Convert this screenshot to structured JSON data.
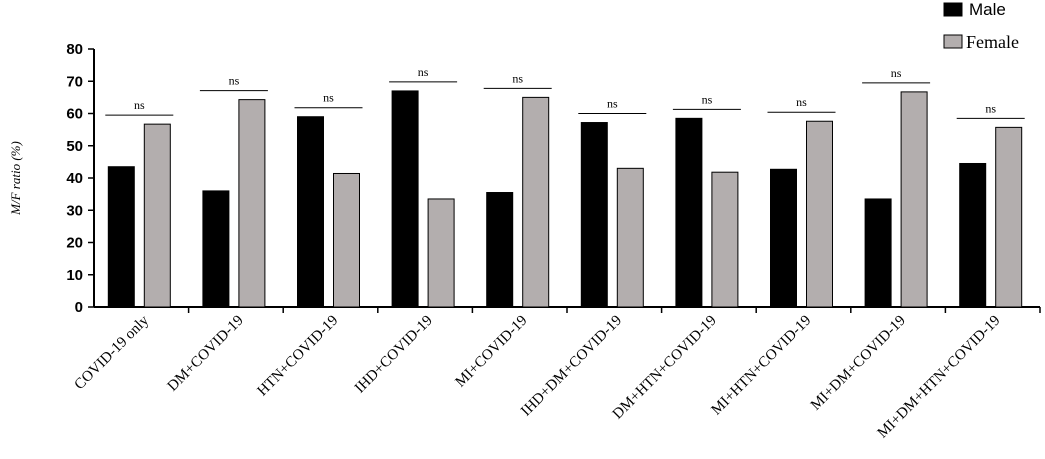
{
  "chart_data": {
    "type": "bar",
    "title": "",
    "xlabel": "",
    "ylabel": "M/F ratio (%)",
    "ylim": [
      0,
      80
    ],
    "yticks": [
      0,
      10,
      20,
      30,
      40,
      50,
      60,
      70,
      80
    ],
    "grid": false,
    "legend_position": "top-right",
    "categories": [
      "COVID-19 only",
      "DM+COVID-19",
      "HTN+COVID-19",
      "IHD+COVID-19",
      "MI+COVID-19",
      "IHD+DM+COVID-19",
      "DM+HTN+COVID-19",
      "MI+HTN+COVID-19",
      "MI+DM+COVID-19",
      "MI+DM+HTN+COVID-19"
    ],
    "series": [
      {
        "name": "Male",
        "color": "#000000",
        "values": [
          43.5,
          36,
          59,
          67,
          35.5,
          57.2,
          58.5,
          42.7,
          33.5,
          44.5
        ]
      },
      {
        "name": "Female",
        "color": "#b3aeae",
        "values": [
          56.7,
          64.3,
          41.4,
          33.5,
          65,
          43,
          41.8,
          57.6,
          66.7,
          55.7
        ]
      }
    ],
    "annotations": [
      "ns",
      "ns",
      "ns",
      "ns",
      "ns",
      "ns",
      "ns",
      "ns",
      "ns",
      "ns"
    ]
  }
}
